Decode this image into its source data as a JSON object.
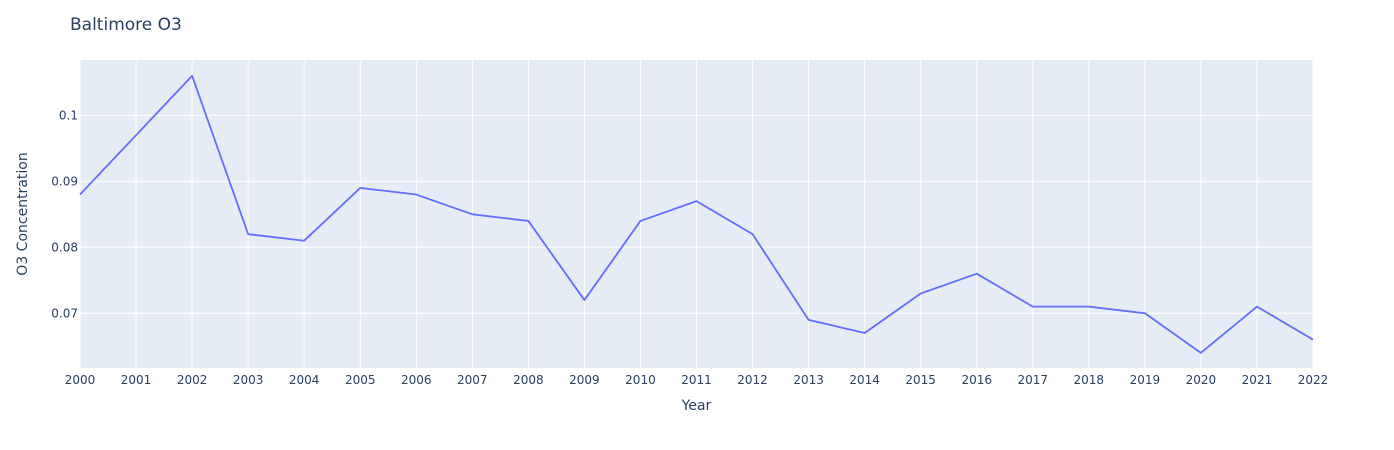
{
  "chart_data": {
    "type": "line",
    "title": "Baltimore O3",
    "xlabel": "Year",
    "ylabel": "O3 Concentration",
    "x": [
      2000,
      2001,
      2002,
      2003,
      2004,
      2005,
      2006,
      2007,
      2008,
      2009,
      2010,
      2011,
      2012,
      2013,
      2014,
      2015,
      2016,
      2017,
      2018,
      2019,
      2020,
      2021,
      2022
    ],
    "series": [
      {
        "values": [
          0.088,
          0.097,
          0.106,
          0.082,
          0.081,
          0.089,
          0.088,
          0.085,
          0.084,
          0.072,
          0.084,
          0.087,
          0.082,
          0.069,
          0.067,
          0.073,
          0.076,
          0.071,
          0.071,
          0.07,
          0.064,
          0.071,
          0.066
        ],
        "color": "#636efa"
      }
    ],
    "xlim": [
      2000,
      2022
    ],
    "ylim": [
      0.0617,
      0.1084
    ],
    "yticks": [
      0.07,
      0.08,
      0.09,
      0.1
    ],
    "ytick_labels": [
      "0.07",
      "0.08",
      "0.09",
      "0.1"
    ],
    "xtick_labels": [
      "2000",
      "2001",
      "2002",
      "2003",
      "2004",
      "2005",
      "2006",
      "2007",
      "2008",
      "2009",
      "2010",
      "2011",
      "2012",
      "2013",
      "2014",
      "2015",
      "2016",
      "2017",
      "2018",
      "2019",
      "2020",
      "2021",
      "2022"
    ],
    "grid": true,
    "legend": false,
    "colors": {
      "plot_bg": "#e5ecf6",
      "grid": "#ffffff",
      "text": "#2a3f5f",
      "line": "#636efa"
    }
  }
}
